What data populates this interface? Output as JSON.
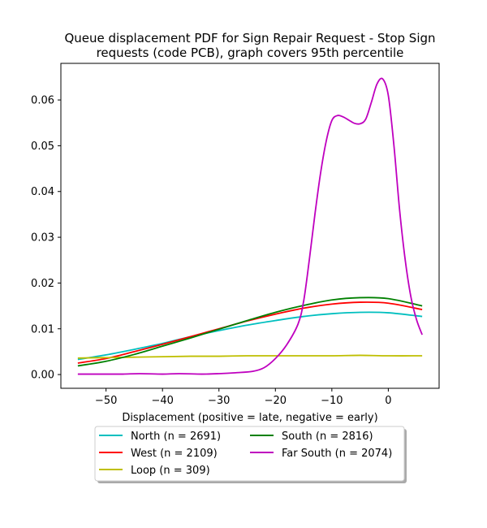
{
  "chart_data": {
    "type": "line",
    "title_lines": [
      "Queue displacement PDF for Sign Repair Request - Stop Sign",
      "requests (code PCB), graph covers 95th percentile"
    ],
    "xlabel": "Displacement (positive = late, negative = early)",
    "ylabel": "",
    "xlim": [
      -58,
      9
    ],
    "ylim": [
      -0.003,
      0.068
    ],
    "x_ticks": [
      -50,
      -40,
      -30,
      -20,
      -10,
      0
    ],
    "x_tick_labels": [
      "−50",
      "−40",
      "−30",
      "−20",
      "−10",
      "0"
    ],
    "y_ticks": [
      0.0,
      0.01,
      0.02,
      0.03,
      0.04,
      0.05,
      0.06
    ],
    "y_tick_labels": [
      "0.00",
      "0.01",
      "0.02",
      "0.03",
      "0.04",
      "0.05",
      "0.06"
    ],
    "grid": false,
    "legend_position": "below",
    "legend_columns": 2,
    "series": [
      {
        "name": "North (n = 2691)",
        "color": "#00bfbf",
        "points": [
          [
            -55,
            0.0033
          ],
          [
            -50,
            0.0043
          ],
          [
            -45,
            0.0055
          ],
          [
            -40,
            0.0068
          ],
          [
            -35,
            0.0083
          ],
          [
            -30,
            0.0096
          ],
          [
            -25,
            0.0108
          ],
          [
            -20,
            0.0118
          ],
          [
            -15,
            0.0127
          ],
          [
            -10,
            0.0133
          ],
          [
            -5,
            0.0136
          ],
          [
            0,
            0.0135
          ],
          [
            6,
            0.0127
          ]
        ]
      },
      {
        "name": "West (n = 2109)",
        "color": "#ff0000",
        "points": [
          [
            -55,
            0.0025
          ],
          [
            -50,
            0.0035
          ],
          [
            -45,
            0.005
          ],
          [
            -40,
            0.0066
          ],
          [
            -35,
            0.0083
          ],
          [
            -30,
            0.01
          ],
          [
            -25,
            0.0117
          ],
          [
            -20,
            0.0132
          ],
          [
            -15,
            0.0145
          ],
          [
            -10,
            0.0154
          ],
          [
            -5,
            0.0158
          ],
          [
            0,
            0.0156
          ],
          [
            6,
            0.0142
          ]
        ]
      },
      {
        "name": "Loop (n = 309)",
        "color": "#bfbf00",
        "points": [
          [
            -55,
            0.0036
          ],
          [
            -50,
            0.0037
          ],
          [
            -45,
            0.0038
          ],
          [
            -40,
            0.0039
          ],
          [
            -35,
            0.004
          ],
          [
            -30,
            0.004
          ],
          [
            -25,
            0.0041
          ],
          [
            -20,
            0.0041
          ],
          [
            -15,
            0.0041
          ],
          [
            -10,
            0.0041
          ],
          [
            -5,
            0.0042
          ],
          [
            0,
            0.0041
          ],
          [
            6,
            0.0041
          ]
        ]
      },
      {
        "name": "South (n = 2816)",
        "color": "#008000",
        "points": [
          [
            -55,
            0.0019
          ],
          [
            -50,
            0.0029
          ],
          [
            -45,
            0.0044
          ],
          [
            -40,
            0.0062
          ],
          [
            -35,
            0.008
          ],
          [
            -30,
            0.0099
          ],
          [
            -25,
            0.0118
          ],
          [
            -20,
            0.0136
          ],
          [
            -15,
            0.0151
          ],
          [
            -10,
            0.0163
          ],
          [
            -5,
            0.0168
          ],
          [
            0,
            0.0166
          ],
          [
            6,
            0.015
          ]
        ]
      },
      {
        "name": "Far South (n = 2074)",
        "color": "#bf00bf",
        "points": [
          [
            -55,
            0.0001
          ],
          [
            -50,
            0.0001
          ],
          [
            -47,
            0.0001
          ],
          [
            -44,
            0.0002
          ],
          [
            -40,
            0.0001
          ],
          [
            -37,
            0.0002
          ],
          [
            -33,
            0.0001
          ],
          [
            -30,
            0.0002
          ],
          [
            -27,
            0.0004
          ],
          [
            -24,
            0.0007
          ],
          [
            -22,
            0.0015
          ],
          [
            -20,
            0.0035
          ],
          [
            -18,
            0.0065
          ],
          [
            -16,
            0.011
          ],
          [
            -15,
            0.016
          ],
          [
            -14,
            0.025
          ],
          [
            -13,
            0.035
          ],
          [
            -12,
            0.044
          ],
          [
            -11,
            0.051
          ],
          [
            -10,
            0.0555
          ],
          [
            -9,
            0.0566
          ],
          [
            -8,
            0.0563
          ],
          [
            -7,
            0.0556
          ],
          [
            -6,
            0.0549
          ],
          [
            -5,
            0.0548
          ],
          [
            -4,
            0.0558
          ],
          [
            -3,
            0.0595
          ],
          [
            -2,
            0.0635
          ],
          [
            -1,
            0.0646
          ],
          [
            0,
            0.061
          ],
          [
            1,
            0.05
          ],
          [
            2,
            0.036
          ],
          [
            3,
            0.025
          ],
          [
            4,
            0.017
          ],
          [
            5,
            0.012
          ],
          [
            6,
            0.0087
          ]
        ]
      }
    ]
  }
}
